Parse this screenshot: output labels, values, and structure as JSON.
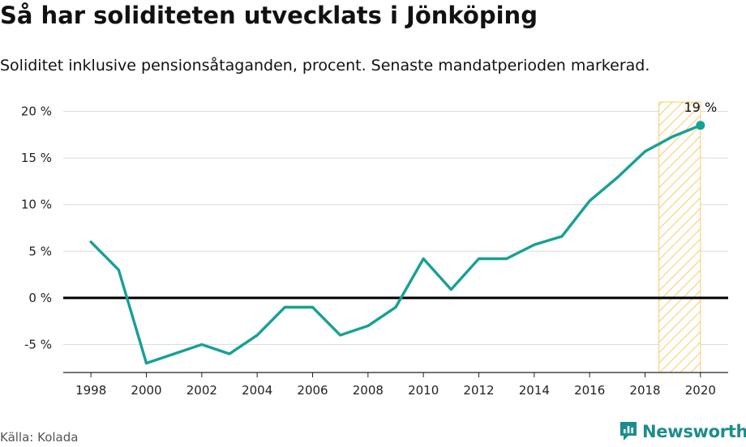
{
  "title": "Så har soliditeten utvecklats i Jönköping",
  "subtitle": "Soliditet inklusive pensionsåtaganden, procent. Senaste mandatperioden markerad.",
  "source": "Källa: Kolada",
  "brand": {
    "name": "Newsworthy",
    "icon": "newsworthy-logo-icon"
  },
  "colors": {
    "line": "#17a096",
    "highlight_fill": "#fde9b8",
    "highlight_stroke": "#f5c04a",
    "zero_line": "#000000",
    "grid": "#dddddd"
  },
  "chart_data": {
    "type": "line",
    "x": [
      1998,
      1999,
      2000,
      2001,
      2002,
      2003,
      2004,
      2005,
      2006,
      2007,
      2008,
      2009,
      2010,
      2011,
      2012,
      2013,
      2014,
      2015,
      2016,
      2017,
      2018,
      2019,
      2020
    ],
    "series": [
      {
        "values": [
          6,
          3,
          -7,
          -6,
          -5,
          -6,
          -4,
          -1,
          -1,
          -4,
          -3,
          -1,
          4.2,
          0.9,
          4.2,
          4.2,
          5.7,
          6.6,
          10.4,
          12.9,
          15.7,
          17.3,
          18.5
        ]
      }
    ],
    "xlim": [
      1997,
      2021
    ],
    "ylim": [
      -8,
      21
    ],
    "xticks": [
      1998,
      2000,
      2002,
      2004,
      2006,
      2008,
      2010,
      2012,
      2014,
      2016,
      2018,
      2020
    ],
    "yticks": [
      -5,
      0,
      5,
      10,
      15,
      20
    ],
    "ytick_labels": [
      "-5 %",
      "0 %",
      "5 %",
      "10 %",
      "15 %",
      "20 %"
    ],
    "highlight_period": [
      2018.5,
      2020
    ],
    "end_label": "19 %",
    "grid": "horizontal",
    "xlabel": "",
    "ylabel": ""
  }
}
